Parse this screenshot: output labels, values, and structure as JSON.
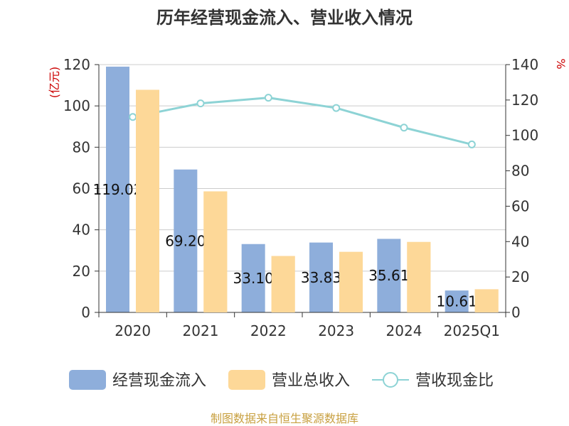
{
  "chart_data": {
    "type": "bar",
    "title": "历年经营现金流入、营业收入情况",
    "categories": [
      "2020",
      "2021",
      "2022",
      "2023",
      "2024",
      "2025Q1"
    ],
    "left_axis": {
      "unit": "(亿元)",
      "ylim": [
        0,
        120
      ],
      "ticks": [
        "0",
        "20",
        "40",
        "60",
        "80",
        "100",
        "120"
      ]
    },
    "right_axis": {
      "unit": "%",
      "ylim": [
        0,
        140
      ],
      "ticks": [
        "0",
        "20",
        "40",
        "60",
        "80",
        "100",
        "120",
        "140"
      ]
    },
    "series": [
      {
        "name": "经营现金流入",
        "type": "bar",
        "axis": "left",
        "color": "#8eaedb",
        "values": [
          119.02,
          69.2,
          33.1,
          33.83,
          35.61,
          10.61
        ],
        "labels": [
          "119.02",
          "69.20",
          "33.10",
          "33.83",
          "35.61",
          "10.61"
        ]
      },
      {
        "name": "营业总收入",
        "type": "bar",
        "axis": "left",
        "color": "#fdd898",
        "values": [
          107.8,
          58.6,
          27.3,
          29.3,
          34.1,
          11.2
        ]
      },
      {
        "name": "营收现金比",
        "type": "line",
        "axis": "right",
        "color": "#8dd3d5",
        "values": [
          110.4,
          118.1,
          121.3,
          115.5,
          104.4,
          94.9
        ]
      }
    ],
    "grid": true,
    "legend_position": "bottom"
  },
  "footer": "制图数据来自恒生聚源数据库"
}
